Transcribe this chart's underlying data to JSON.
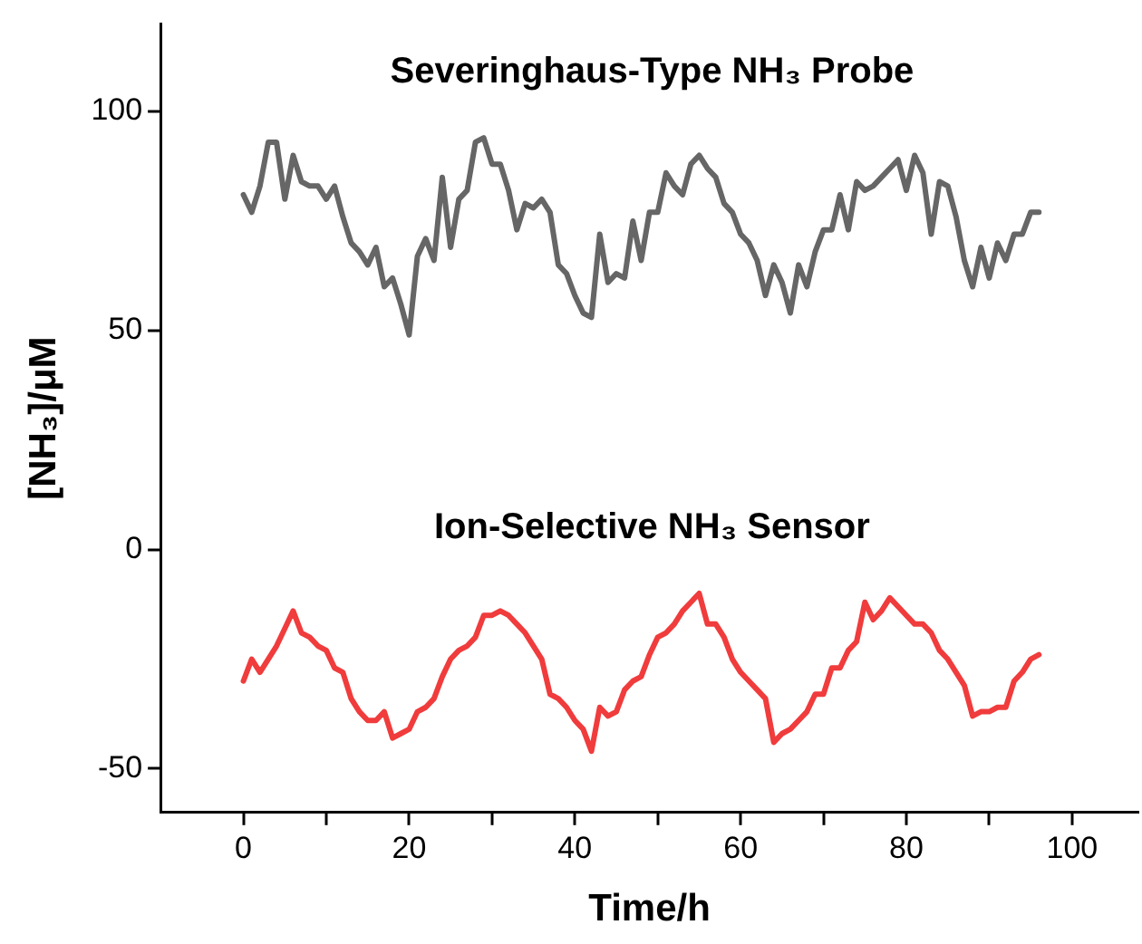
{
  "chart_data": {
    "type": "line",
    "xlabel": "Time/h",
    "ylabel": "[NH₃]/μM",
    "x": [
      0,
      1,
      2,
      3,
      4,
      5,
      6,
      7,
      8,
      9,
      10,
      11,
      12,
      13,
      14,
      15,
      16,
      17,
      18,
      19,
      20,
      21,
      22,
      23,
      24,
      25,
      26,
      27,
      28,
      29,
      30,
      31,
      32,
      33,
      34,
      35,
      36,
      37,
      38,
      39,
      40,
      41,
      42,
      43,
      44,
      45,
      46,
      47,
      48,
      49,
      50,
      51,
      52,
      53,
      54,
      55,
      56,
      57,
      58,
      59,
      60,
      61,
      62,
      63,
      64,
      65,
      66,
      67,
      68,
      69,
      70,
      71,
      72,
      73,
      74,
      75,
      76,
      77,
      78,
      79,
      80,
      81,
      82,
      83,
      84,
      85,
      86,
      87,
      88,
      89,
      90,
      91,
      92,
      93,
      94,
      95,
      96
    ],
    "series": [
      {
        "name": "Severinghaus-Type NH₃ Probe",
        "color": "#666666",
        "values": [
          81,
          77,
          83,
          93,
          93,
          80,
          90,
          84,
          83,
          83,
          80,
          83,
          76,
          70,
          68,
          65,
          69,
          60,
          62,
          56,
          49,
          67,
          71,
          66,
          85,
          69,
          80,
          82,
          93,
          94,
          88,
          88,
          82,
          73,
          79,
          78,
          80,
          77,
          65,
          63,
          58,
          54,
          53,
          72,
          61,
          63,
          62,
          75,
          66,
          77,
          77,
          86,
          83,
          81,
          88,
          90,
          87,
          85,
          79,
          77,
          72,
          70,
          66,
          58,
          65,
          61,
          54,
          65,
          60,
          68,
          73,
          73,
          81,
          73,
          84,
          82,
          83,
          85,
          87,
          89,
          82,
          90,
          86,
          72,
          84,
          83,
          76,
          66,
          60,
          69,
          62,
          70,
          66,
          72,
          72,
          77,
          77
        ]
      },
      {
        "name": "Ion-Selective NH₃ Sensor",
        "color": "#f03c3c",
        "values": [
          -30,
          -25,
          -28,
          -25,
          -22,
          -18,
          -14,
          -19,
          -20,
          -22,
          -23,
          -27,
          -28,
          -34,
          -37,
          -39,
          -39,
          -37,
          -43,
          -42,
          -41,
          -37,
          -36,
          -34,
          -29,
          -25,
          -23,
          -22,
          -20,
          -15,
          -15,
          -14,
          -15,
          -17,
          -19,
          -22,
          -25,
          -33,
          -34,
          -36,
          -39,
          -41,
          -46,
          -36,
          -38,
          -37,
          -32,
          -30,
          -29,
          -24,
          -20,
          -19,
          -17,
          -14,
          -12,
          -10,
          -17,
          -17,
          -20,
          -25,
          -28,
          -30,
          -32,
          -34,
          -44,
          -42,
          -41,
          -39,
          -37,
          -33,
          -33,
          -27,
          -27,
          -23,
          -21,
          -12,
          -16,
          -14,
          -11,
          -13,
          -15,
          -17,
          -17,
          -19,
          -23,
          -25,
          -28,
          -31,
          -38,
          -37,
          -37,
          -36,
          -36,
          -30,
          -28,
          -25,
          -24
        ]
      }
    ],
    "xlim": [
      -10,
      108
    ],
    "ylim": [
      -60,
      120
    ],
    "xticks": [
      0,
      {
        "value": 10,
        "label": null
      },
      20,
      {
        "value": 30,
        "label": null
      },
      40,
      {
        "value": 50,
        "label": null
      },
      60,
      {
        "value": 70,
        "label": null
      },
      80,
      {
        "value": 90,
        "label": null
      },
      100
    ],
    "yticks": [
      -50,
      0,
      50,
      100
    ],
    "grid": false,
    "legend": false,
    "marker": "none",
    "line_style": "solid"
  }
}
